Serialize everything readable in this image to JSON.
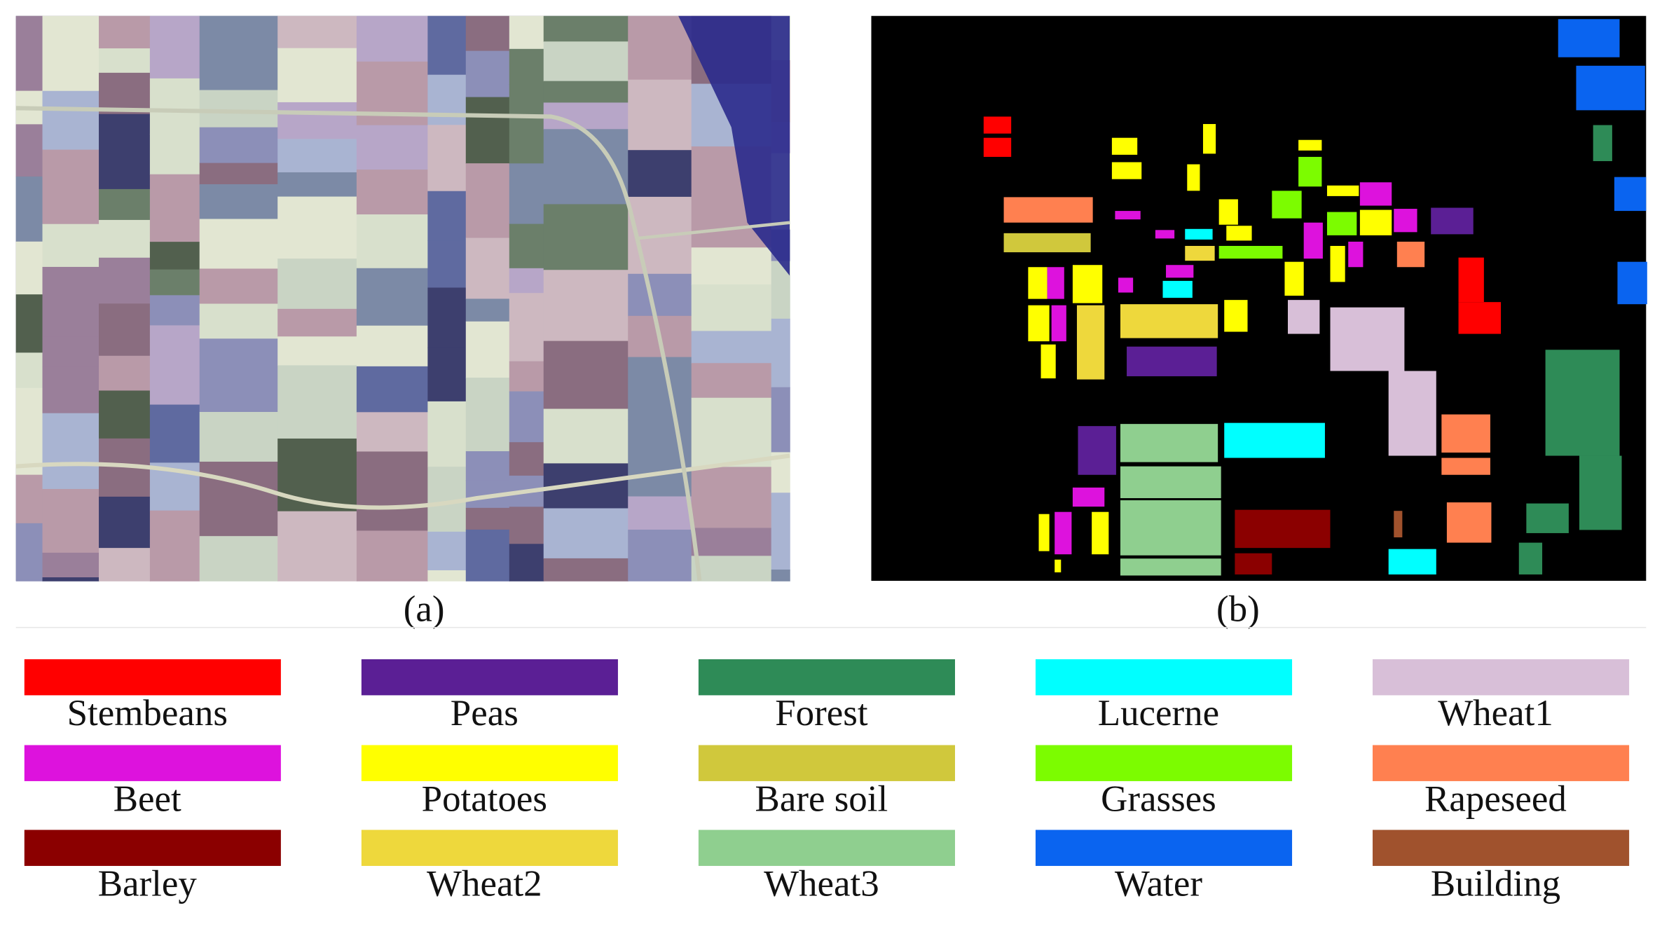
{
  "panels": [
    {
      "caption": "(a)"
    },
    {
      "caption": "(b)"
    }
  ],
  "legend": [
    {
      "label": "Stembeans",
      "color": "#ff0000"
    },
    {
      "label": "Peas",
      "color": "#5b1f95"
    },
    {
      "label": "Forest",
      "color": "#2e8b57"
    },
    {
      "label": "Lucerne",
      "color": "#00ffff"
    },
    {
      "label": "Wheat1",
      "color": "#d8bfd8"
    },
    {
      "label": "Beet",
      "color": "#dd12dd"
    },
    {
      "label": "Potatoes",
      "color": "#ffff00"
    },
    {
      "label": "Bare soil",
      "color": "#d0c83c"
    },
    {
      "label": "Grasses",
      "color": "#7cfc00"
    },
    {
      "label": "Rapeseed",
      "color": "#ff8050"
    },
    {
      "label": "Barley",
      "color": "#8b0000"
    },
    {
      "label": "Wheat2",
      "color": "#eed83c"
    },
    {
      "label": "Wheat3",
      "color": "#8fcf8f"
    },
    {
      "label": "Water",
      "color": "#0a64f0"
    },
    {
      "label": "Building",
      "color": "#a0522d"
    }
  ]
}
